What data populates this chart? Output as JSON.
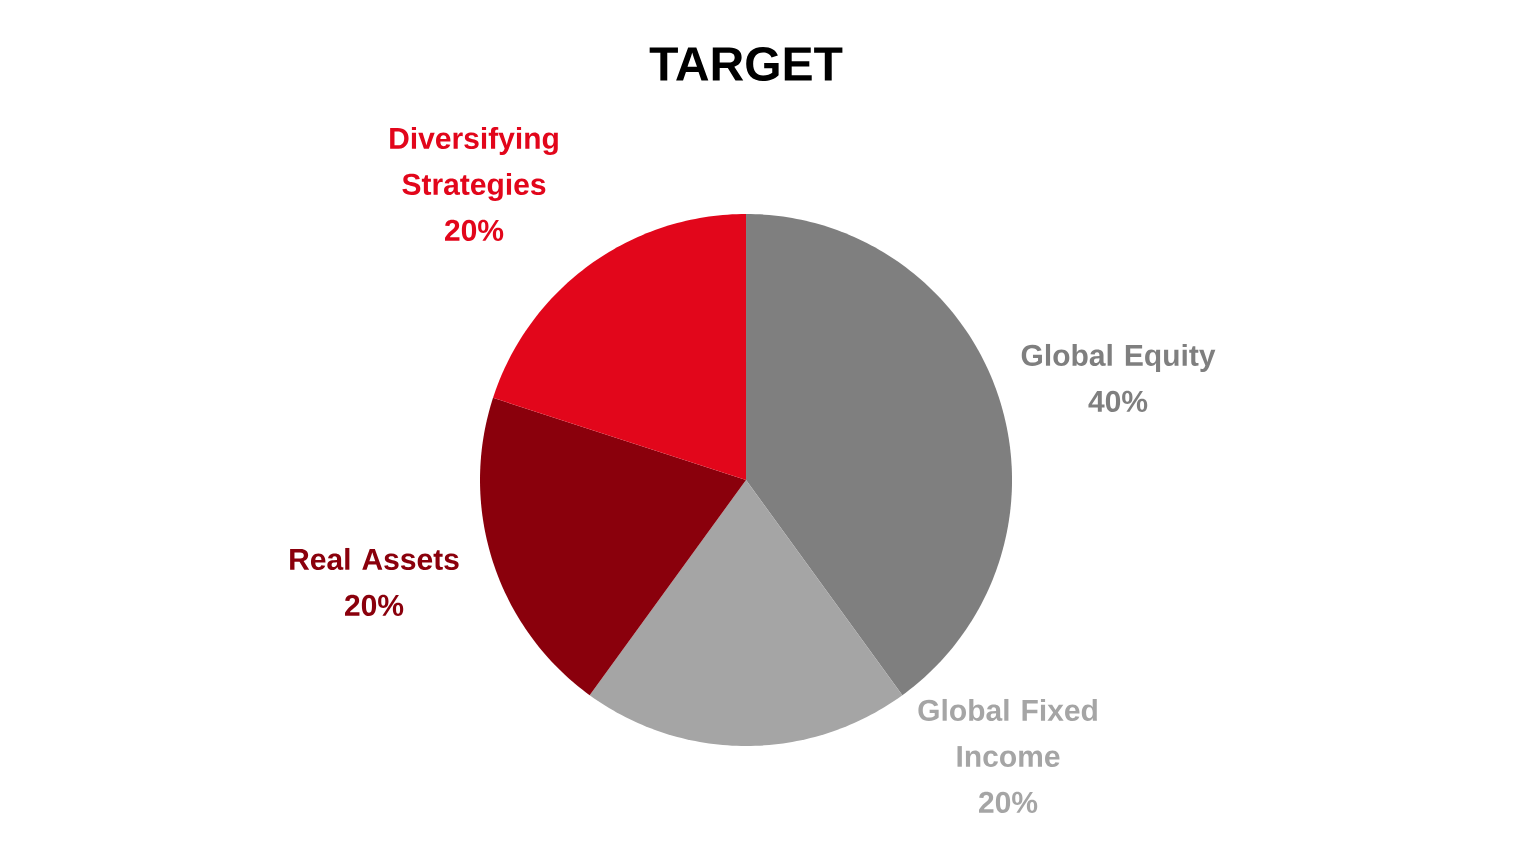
{
  "chart_data": {
    "type": "pie",
    "title": "TARGET",
    "categories": [
      "Global Equity",
      "Global Fixed Income",
      "Real Assets",
      "Diversifying Strategies"
    ],
    "values": [
      40,
      20,
      20,
      20
    ],
    "colors": [
      "#7f7f7f",
      "#a5a5a5",
      "#8a000c",
      "#e2061b"
    ],
    "value_labels": [
      "40%",
      "20%",
      "20%",
      "20%"
    ]
  }
}
